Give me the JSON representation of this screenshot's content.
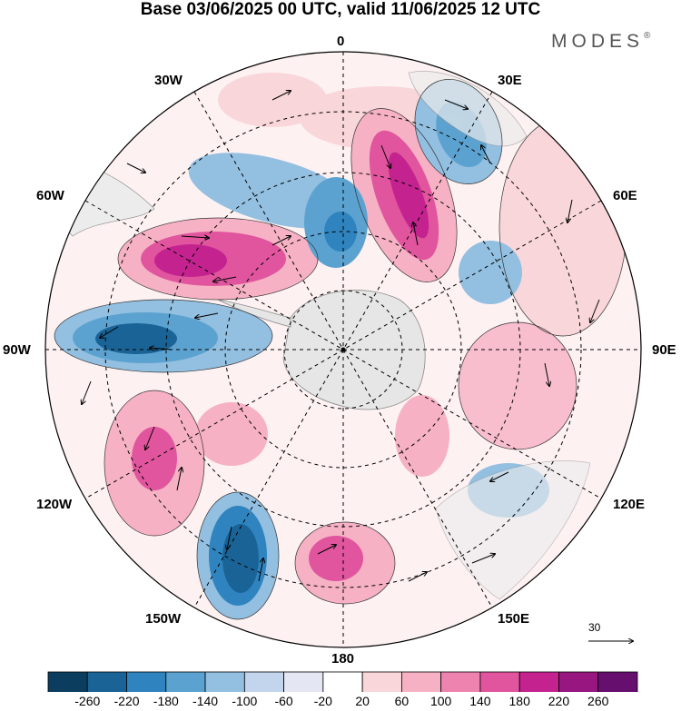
{
  "title": "Base 03/06/2025 00 UTC, valid 11/06/2025 12 UTC",
  "brand": {
    "text": "MODES",
    "reg": "®"
  },
  "longitude_labels": {
    "top": "0",
    "top_right": "30E",
    "right_upper": "60E",
    "right": "90E",
    "right_lower": "120E",
    "bottom_right": "150E",
    "bottom": "180",
    "bottom_left": "150W",
    "left_lower": "120W",
    "left": "90W",
    "left_upper": "60W",
    "top_left": "30W"
  },
  "reference_vector": {
    "label": "30"
  },
  "colorbar": {
    "ticks": [
      "-260",
      "-220",
      "-180",
      "-140",
      "-100",
      "-60",
      "-20",
      "20",
      "60",
      "100",
      "140",
      "180",
      "220",
      "260"
    ],
    "colors": [
      "#0b3d5e",
      "#1a6396",
      "#2f84bf",
      "#5ba2d0",
      "#93bfe0",
      "#c2d5ec",
      "#e5e6f3",
      "#ffffff",
      "#f9d6d9",
      "#f6b2c4",
      "#ee83b0",
      "#e0559e",
      "#c4238f",
      "#98167f",
      "#660f6f"
    ]
  },
  "anomalies": [
    {
      "name": "pos-1",
      "color": "#f6b2c4"
    },
    {
      "name": "pos-2",
      "color": "#c4238f"
    },
    {
      "name": "pos-3",
      "color": "#c4238f"
    },
    {
      "name": "neg-1",
      "color": "#2f84bf"
    },
    {
      "name": "neg-2",
      "color": "#1a6396"
    },
    {
      "name": "neg-3",
      "color": "#1a6396"
    }
  ]
}
